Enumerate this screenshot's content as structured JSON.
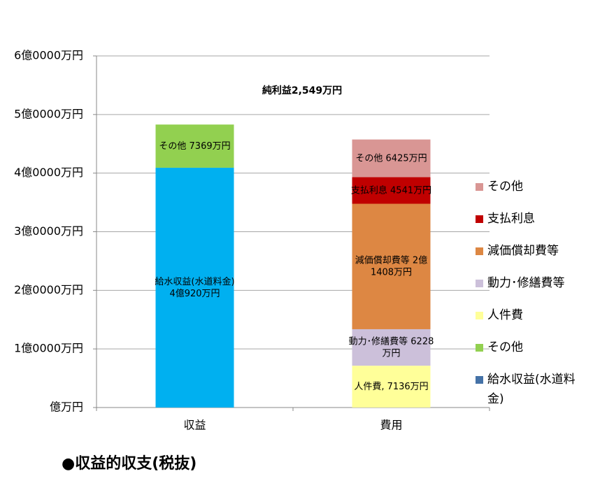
{
  "chart_data": {
    "type": "stacked-bar",
    "title": "●収益的収支(税抜)",
    "annotation": "純利益2,549万円",
    "categories": [
      "収益",
      "費用"
    ],
    "series": [
      {
        "name": "給水収益(水道料金)",
        "color": "#00b0f0",
        "legend_color": "#4572a7",
        "values": [
          40920,
          null
        ],
        "value_labels": [
          "給水収益(水道料金)\n4億920万円",
          null
        ]
      },
      {
        "name": "その他",
        "color": "#92d050",
        "values": [
          7369,
          null
        ],
        "value_labels": [
          "その他 7369万円",
          null
        ]
      },
      {
        "name": "人件費",
        "color": "#ffff99",
        "values": [
          null,
          7136
        ],
        "value_labels": [
          null,
          "人件費, 7136万円"
        ]
      },
      {
        "name": "動力･修繕費等",
        "color": "#ccc0da",
        "values": [
          null,
          6228
        ],
        "value_labels": [
          null,
          "動力･修繕費等 6228\n万円"
        ]
      },
      {
        "name": "減価償却費等",
        "color": "#dd8743",
        "values": [
          null,
          21408
        ],
        "value_labels": [
          null,
          "減価償却費等 2億\n1408万円"
        ]
      },
      {
        "name": "支払利息",
        "color": "#c00000",
        "values": [
          null,
          4541
        ],
        "value_labels": [
          null,
          "支払利息 4541万円"
        ]
      },
      {
        "name": "その他",
        "color": "#d99694",
        "values": [
          null,
          6425
        ],
        "value_labels": [
          null,
          "その他 6425万円"
        ]
      }
    ],
    "ylim": [
      0,
      60000
    ],
    "yticks": [
      {
        "value": 0,
        "label": "億万円"
      },
      {
        "value": 10000,
        "label": "1億0000万円"
      },
      {
        "value": 20000,
        "label": "2億0000万円"
      },
      {
        "value": 30000,
        "label": "3億0000万円"
      },
      {
        "value": 40000,
        "label": "4億0000万円"
      },
      {
        "value": 50000,
        "label": "5億0000万円"
      },
      {
        "value": 60000,
        "label": "6億0000万円"
      }
    ],
    "grid": true,
    "legend": "right"
  }
}
